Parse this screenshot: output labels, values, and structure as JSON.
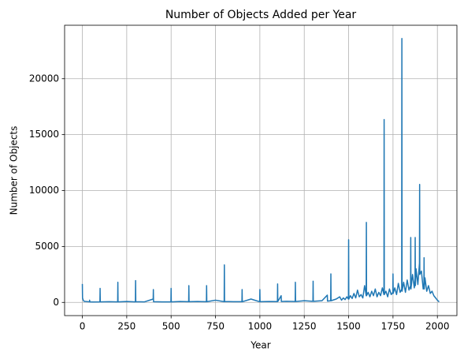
{
  "chart_data": {
    "type": "line",
    "title": "Number of Objects Added per Year",
    "x_label": "Year",
    "y_label": "Number of Objects",
    "x": [
      0,
      1,
      5,
      10,
      40,
      41,
      42,
      60,
      99,
      100,
      101,
      150,
      199,
      200,
      201,
      250,
      299,
      300,
      301,
      350,
      399,
      400,
      401,
      450,
      499,
      500,
      501,
      550,
      599,
      600,
      601,
      650,
      699,
      700,
      701,
      750,
      799,
      800,
      801,
      850,
      899,
      900,
      901,
      950,
      999,
      1000,
      1001,
      1050,
      1099,
      1100,
      1101,
      1120,
      1121,
      1150,
      1199,
      1200,
      1201,
      1250,
      1299,
      1300,
      1301,
      1350,
      1380,
      1381,
      1399,
      1400,
      1401,
      1430,
      1450,
      1460,
      1470,
      1480,
      1490,
      1499,
      1500,
      1501,
      1510,
      1520,
      1530,
      1540,
      1550,
      1560,
      1570,
      1580,
      1590,
      1599,
      1600,
      1601,
      1610,
      1620,
      1630,
      1640,
      1650,
      1660,
      1670,
      1680,
      1690,
      1699,
      1700,
      1701,
      1710,
      1720,
      1730,
      1740,
      1749,
      1750,
      1751,
      1760,
      1770,
      1780,
      1790,
      1799,
      1800,
      1801,
      1810,
      1820,
      1830,
      1840,
      1849,
      1850,
      1851,
      1860,
      1870,
      1874,
      1875,
      1876,
      1880,
      1890,
      1899,
      1900,
      1901,
      1910,
      1920,
      1924,
      1925,
      1926,
      1930,
      1940,
      1950,
      1960,
      1970,
      1980,
      1990,
      2000,
      2010
    ],
    "series": [
      {
        "name": "Number of Objects",
        "color": "#1f77b4",
        "values": [
          1650,
          400,
          200,
          100,
          50,
          200,
          50,
          40,
          50,
          1250,
          50,
          60,
          50,
          1800,
          50,
          80,
          50,
          1950,
          60,
          50,
          300,
          1150,
          60,
          50,
          50,
          1250,
          50,
          80,
          60,
          1500,
          60,
          80,
          60,
          1500,
          60,
          200,
          60,
          3350,
          80,
          60,
          60,
          1150,
          60,
          300,
          60,
          1150,
          60,
          80,
          70,
          1650,
          80,
          600,
          80,
          100,
          80,
          1800,
          80,
          150,
          100,
          1900,
          100,
          150,
          650,
          120,
          150,
          2550,
          150,
          300,
          500,
          200,
          400,
          250,
          500,
          300,
          5600,
          300,
          600,
          350,
          800,
          400,
          1100,
          500,
          700,
          400,
          1500,
          600,
          7150,
          600,
          900,
          500,
          1000,
          600,
          1200,
          500,
          900,
          600,
          1300,
          700,
          16350,
          700,
          1000,
          500,
          1200,
          700,
          900,
          2550,
          800,
          1300,
          700,
          1700,
          900,
          1200,
          23600,
          1000,
          1800,
          900,
          2000,
          1100,
          1500,
          5800,
          1200,
          2500,
          1300,
          2000,
          5800,
          1500,
          3000,
          1600,
          3500,
          10550,
          2500,
          2800,
          1200,
          1500,
          4000,
          1200,
          2200,
          1000,
          1500,
          800,
          1000,
          600,
          400,
          200,
          50
        ]
      }
    ],
    "xlim": [
      -100,
      2110
    ],
    "ylim": [
      -1180,
      24780
    ],
    "xticks": [
      0,
      250,
      500,
      750,
      1000,
      1250,
      1500,
      1750,
      2000
    ],
    "yticks": [
      0,
      5000,
      10000,
      15000,
      20000
    ],
    "grid": true
  }
}
